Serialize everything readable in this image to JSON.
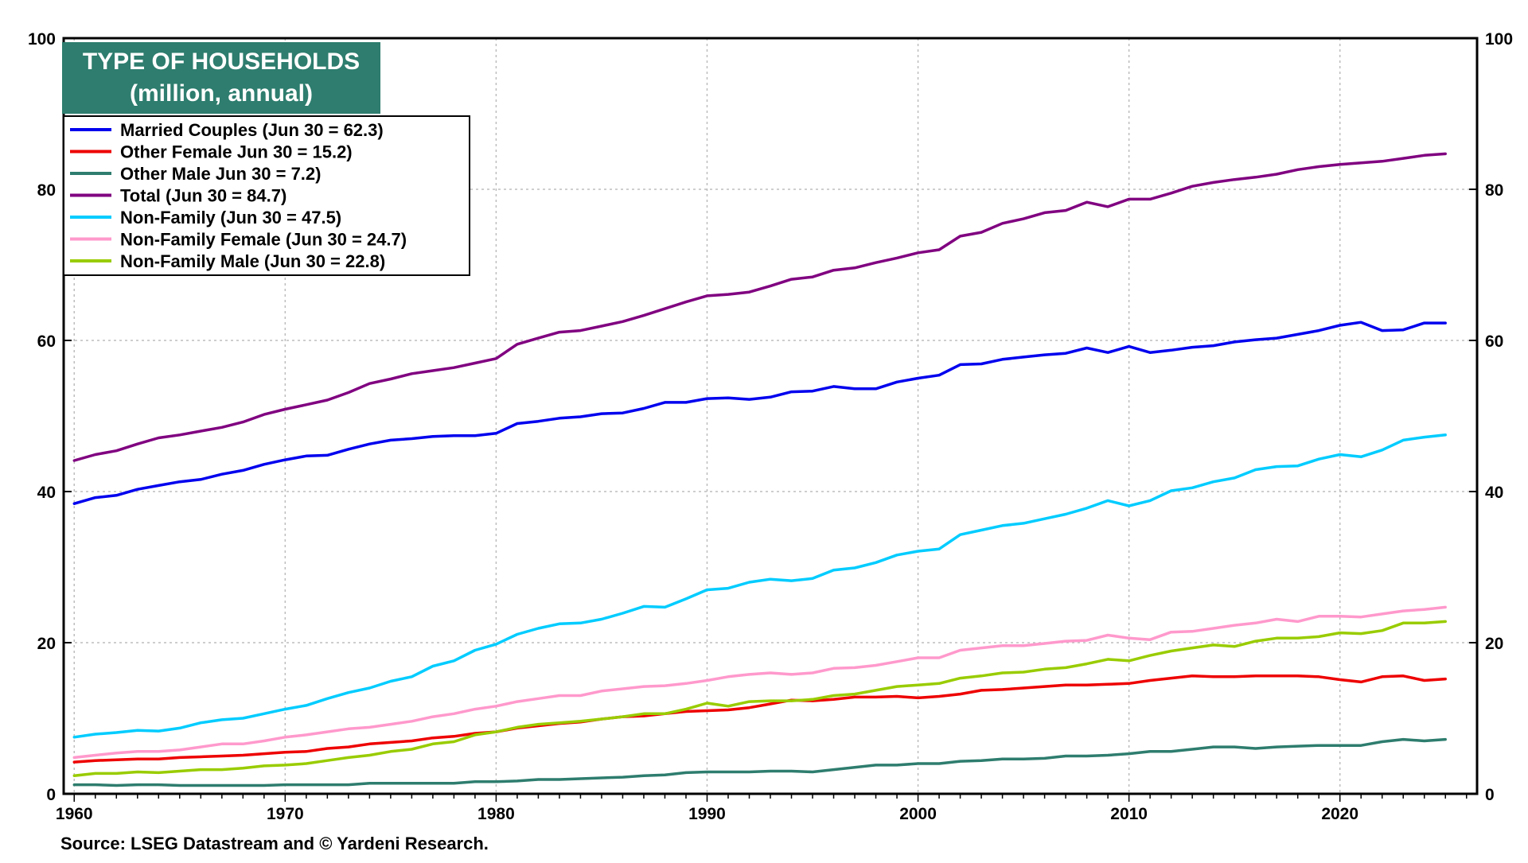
{
  "chart_data": {
    "type": "line",
    "title": "TYPE OF HOUSEHOLDS",
    "subtitle": "(million, annual)",
    "source": "Source: LSEG Datastream and © Yardeni Research.",
    "xlim": [
      1959.5,
      2026.5
    ],
    "ylim": [
      0,
      100
    ],
    "x_ticks": [
      1960,
      1970,
      1980,
      1990,
      2000,
      2010,
      2020
    ],
    "y_ticks": [
      0,
      20,
      40,
      60,
      80,
      100
    ],
    "grid": true,
    "legend_position": "top-left",
    "title_bg_color": "#2e7d6e",
    "x": [
      1960,
      1961,
      1962,
      1963,
      1964,
      1965,
      1966,
      1967,
      1968,
      1969,
      1970,
      1971,
      1972,
      1973,
      1974,
      1975,
      1976,
      1977,
      1978,
      1979,
      1980,
      1981,
      1982,
      1983,
      1984,
      1985,
      1986,
      1987,
      1988,
      1989,
      1990,
      1991,
      1992,
      1993,
      1994,
      1995,
      1996,
      1997,
      1998,
      1999,
      2000,
      2001,
      2002,
      2003,
      2004,
      2005,
      2006,
      2007,
      2008,
      2009,
      2010,
      2011,
      2012,
      2013,
      2014,
      2015,
      2016,
      2017,
      2018,
      2019,
      2020,
      2021,
      2022,
      2023,
      2024,
      2025
    ],
    "series": [
      {
        "name": "Married Couples",
        "legend": "Married Couples (Jun 30 = 62.3)",
        "color": "#0000ee",
        "values": [
          38.4,
          39.2,
          39.5,
          40.3,
          40.8,
          41.3,
          41.6,
          42.3,
          42.8,
          43.6,
          44.2,
          44.7,
          44.8,
          45.6,
          46.3,
          46.8,
          47.0,
          47.3,
          47.4,
          47.4,
          47.7,
          49.0,
          49.3,
          49.7,
          49.9,
          50.3,
          50.4,
          51.0,
          51.8,
          51.8,
          52.3,
          52.4,
          52.2,
          52.5,
          53.2,
          53.3,
          53.9,
          53.6,
          53.6,
          54.5,
          55.0,
          55.4,
          56.8,
          56.9,
          57.5,
          57.8,
          58.1,
          58.3,
          59.0,
          58.4,
          59.2,
          58.4,
          58.7,
          59.1,
          59.3,
          59.8,
          60.1,
          60.3,
          60.8,
          61.3,
          62.0,
          62.4,
          61.3,
          61.4,
          62.3,
          62.3
        ]
      },
      {
        "name": "Other Female",
        "legend": "Other Female Jun 30 = 15.2)",
        "color": "#ee0000",
        "values": [
          4.2,
          4.4,
          4.5,
          4.6,
          4.6,
          4.8,
          4.9,
          5.0,
          5.1,
          5.3,
          5.5,
          5.6,
          6.0,
          6.2,
          6.6,
          6.8,
          7.0,
          7.4,
          7.6,
          8.0,
          8.2,
          8.7,
          9.0,
          9.3,
          9.5,
          9.9,
          10.2,
          10.3,
          10.6,
          10.9,
          11.0,
          11.1,
          11.4,
          11.9,
          12.4,
          12.3,
          12.5,
          12.8,
          12.8,
          12.9,
          12.7,
          12.9,
          13.2,
          13.7,
          13.8,
          14.0,
          14.2,
          14.4,
          14.4,
          14.5,
          14.6,
          15.0,
          15.3,
          15.6,
          15.5,
          15.5,
          15.6,
          15.6,
          15.6,
          15.5,
          15.1,
          14.8,
          15.5,
          15.6,
          15.0,
          15.2
        ]
      },
      {
        "name": "Other Male",
        "legend": "Other Male Jun 30 = 7.2)",
        "color": "#2e7d6e",
        "values": [
          1.2,
          1.2,
          1.1,
          1.2,
          1.2,
          1.1,
          1.1,
          1.1,
          1.1,
          1.1,
          1.2,
          1.2,
          1.2,
          1.2,
          1.4,
          1.4,
          1.4,
          1.4,
          1.4,
          1.6,
          1.6,
          1.7,
          1.9,
          1.9,
          2.0,
          2.1,
          2.2,
          2.4,
          2.5,
          2.8,
          2.9,
          2.9,
          2.9,
          3.0,
          3.0,
          2.9,
          3.2,
          3.5,
          3.8,
          3.8,
          4.0,
          4.0,
          4.3,
          4.4,
          4.6,
          4.6,
          4.7,
          5.0,
          5.0,
          5.1,
          5.3,
          5.6,
          5.6,
          5.9,
          6.2,
          6.2,
          6.0,
          6.2,
          6.3,
          6.4,
          6.4,
          6.4,
          6.9,
          7.2,
          7.0,
          7.2
        ]
      },
      {
        "name": "Total",
        "legend": "Total (Jun 30 = 84.7)",
        "color": "#800080",
        "values": [
          44.1,
          44.9,
          45.4,
          46.3,
          47.1,
          47.5,
          48.0,
          48.5,
          49.2,
          50.2,
          50.9,
          51.5,
          52.1,
          53.1,
          54.3,
          54.9,
          55.6,
          56.0,
          56.4,
          57.0,
          57.6,
          59.5,
          60.3,
          61.1,
          61.3,
          61.9,
          62.5,
          63.3,
          64.2,
          65.1,
          65.9,
          66.1,
          66.4,
          67.2,
          68.1,
          68.4,
          69.3,
          69.6,
          70.3,
          70.9,
          71.6,
          72.0,
          73.8,
          74.3,
          75.5,
          76.1,
          76.9,
          77.2,
          78.3,
          77.7,
          78.7,
          78.7,
          79.5,
          80.4,
          80.9,
          81.3,
          81.6,
          82.0,
          82.6,
          83.0,
          83.3,
          83.5,
          83.7,
          84.1,
          84.5,
          84.7
        ]
      },
      {
        "name": "Non-Family",
        "legend": "Non-Family (Jun 30 = 47.5)",
        "color": "#00ccff",
        "values": [
          7.5,
          7.9,
          8.1,
          8.4,
          8.3,
          8.7,
          9.4,
          9.8,
          10.0,
          10.6,
          11.2,
          11.7,
          12.6,
          13.4,
          14.0,
          14.9,
          15.5,
          16.9,
          17.6,
          19.0,
          19.8,
          21.1,
          21.9,
          22.5,
          22.6,
          23.1,
          23.9,
          24.8,
          24.7,
          25.8,
          27.0,
          27.2,
          28.0,
          28.4,
          28.2,
          28.5,
          29.6,
          29.9,
          30.6,
          31.6,
          32.1,
          32.4,
          34.3,
          34.9,
          35.5,
          35.8,
          36.4,
          37.0,
          37.8,
          38.8,
          38.1,
          38.8,
          40.1,
          40.5,
          41.3,
          41.8,
          42.9,
          43.3,
          43.4,
          44.3,
          44.9,
          44.6,
          45.5,
          46.8,
          47.2,
          47.5
        ]
      },
      {
        "name": "Non-Family Female",
        "legend": "Non-Family Female (Jun 30 = 24.7)",
        "color": "#ff99cc",
        "values": [
          4.8,
          5.1,
          5.4,
          5.6,
          5.6,
          5.8,
          6.2,
          6.6,
          6.6,
          7.0,
          7.5,
          7.8,
          8.2,
          8.6,
          8.8,
          9.2,
          9.6,
          10.2,
          10.6,
          11.2,
          11.6,
          12.2,
          12.6,
          13.0,
          13.0,
          13.6,
          13.9,
          14.2,
          14.3,
          14.6,
          15.0,
          15.5,
          15.8,
          16.0,
          15.8,
          16.0,
          16.6,
          16.7,
          17.0,
          17.5,
          18.0,
          18.0,
          19.0,
          19.3,
          19.6,
          19.6,
          19.9,
          20.2,
          20.3,
          21.0,
          20.6,
          20.4,
          21.4,
          21.5,
          21.9,
          22.3,
          22.6,
          23.1,
          22.8,
          23.5,
          23.5,
          23.4,
          23.8,
          24.2,
          24.4,
          24.7
        ]
      },
      {
        "name": "Non-Family Male",
        "legend": "Non-Family Male (Jun 30 = 22.8)",
        "color": "#99cc00",
        "values": [
          2.4,
          2.7,
          2.7,
          2.9,
          2.8,
          3.0,
          3.2,
          3.2,
          3.4,
          3.7,
          3.8,
          4.0,
          4.4,
          4.8,
          5.1,
          5.6,
          5.9,
          6.6,
          6.9,
          7.8,
          8.2,
          8.8,
          9.2,
          9.4,
          9.6,
          9.9,
          10.2,
          10.6,
          10.6,
          11.2,
          12.0,
          11.6,
          12.2,
          12.3,
          12.3,
          12.5,
          13.0,
          13.2,
          13.7,
          14.2,
          14.4,
          14.6,
          15.3,
          15.6,
          16.0,
          16.1,
          16.5,
          16.7,
          17.2,
          17.8,
          17.6,
          18.3,
          18.9,
          19.3,
          19.7,
          19.5,
          20.2,
          20.6,
          20.6,
          20.8,
          21.3,
          21.2,
          21.6,
          22.6,
          22.6,
          22.8
        ]
      }
    ]
  }
}
